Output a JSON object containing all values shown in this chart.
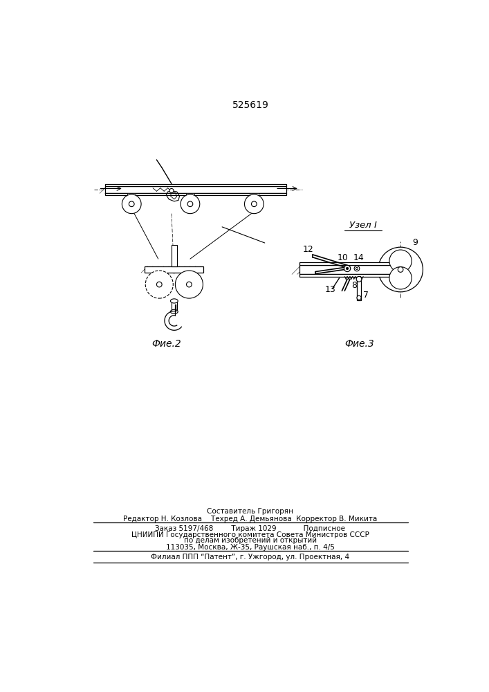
{
  "patent_number": "525619",
  "background_color": "#ffffff",
  "line_color": "#000000",
  "fig_width": 7.07,
  "fig_height": 10.0,
  "dpi": 100,
  "footer": {
    "line1": "Составитель Григорян",
    "line2": "Редактор Н. Козлова    Техред А. Демьянова  Корректор В. Микита",
    "line3": "Заказ 5197/468        Тираж 1029            Подписное",
    "line4": "ЦНИИПИ Государственного комитета Совета Министров СССР",
    "line5": "по делам изобретений и открытий",
    "line6": "113035, Москва, Ж-35, Раушская наб., п. 4/5",
    "line7": "Филиал ППП “Патент”, г. Ужгород, ул. Проектная, 4"
  }
}
